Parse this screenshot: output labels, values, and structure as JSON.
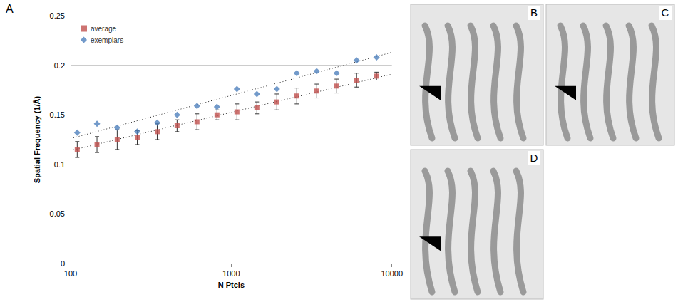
{
  "panel_label": "A",
  "chart_data": {
    "type": "scatter",
    "x_label": "N Ptcls",
    "y_label": "Spatial Frequency (1/Å)",
    "log": "x",
    "grid": true,
    "legend": "upper left",
    "xlim": [
      100,
      10000
    ],
    "xticks": [
      100,
      1000,
      10000
    ],
    "ylim": [
      0,
      0.25
    ],
    "yticks": [
      0,
      0.05,
      0.1,
      0.15,
      0.2,
      0.25
    ],
    "x": [
      110,
      146,
      195,
      260,
      346,
      460,
      612,
      815,
      1085,
      1444,
      1922,
      2558,
      3405,
      4532,
      6032,
      8029
    ],
    "series": [
      {
        "name": "average",
        "color": "#c0504d",
        "marker": "square",
        "values": [
          0.115,
          0.12,
          0.125,
          0.127,
          0.133,
          0.139,
          0.143,
          0.15,
          0.153,
          0.157,
          0.163,
          0.169,
          0.174,
          0.179,
          0.185,
          0.189
        ],
        "errors": [
          0.008,
          0.008,
          0.01,
          0.007,
          0.008,
          0.006,
          0.008,
          0.005,
          0.008,
          0.006,
          0.008,
          0.008,
          0.007,
          0.007,
          0.007,
          0.004
        ],
        "trend": {
          "x": [
            100,
            10000
          ],
          "values": [
            0.114,
            0.191
          ],
          "line_style": "dotted"
        }
      },
      {
        "name": "exemplars",
        "color": "#4f81bd",
        "marker": "diamond",
        "values": [
          0.132,
          0.141,
          0.137,
          0.133,
          0.142,
          0.15,
          0.159,
          0.158,
          0.176,
          0.171,
          0.176,
          0.192,
          0.194,
          0.192,
          0.205,
          0.208
        ],
        "trend": {
          "x": [
            100,
            10000
          ],
          "values": [
            0.126,
            0.213
          ],
          "line_style": "dotted"
        }
      }
    ]
  },
  "image_panels": [
    {
      "label": "B"
    },
    {
      "label": "C"
    },
    {
      "label": "D"
    }
  ]
}
